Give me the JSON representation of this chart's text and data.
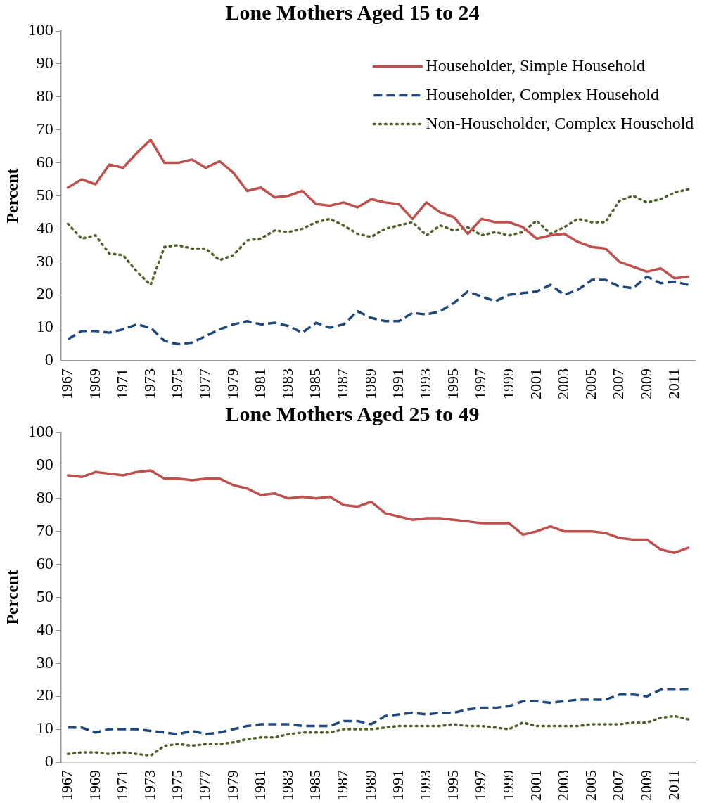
{
  "chart_data": [
    {
      "type": "line",
      "title": "Lone Mothers Aged 15 to 24",
      "ylabel": "Percent",
      "categories": [
        "1967",
        null,
        "1969",
        null,
        "1971",
        null,
        "1973",
        null,
        "1975",
        null,
        "1977",
        null,
        "1979",
        null,
        "1981",
        null,
        "1983",
        null,
        "1985",
        null,
        "1987",
        null,
        "1989",
        null,
        "1991",
        null,
        "1993",
        null,
        "1995",
        null,
        "1997",
        null,
        "1999",
        null,
        "2001",
        null,
        "2003",
        null,
        "2005",
        null,
        "2007",
        null,
        "2009",
        null,
        "2011",
        null
      ],
      "ylim": [
        0,
        100
      ],
      "yticks": [
        0,
        10,
        20,
        30,
        40,
        50,
        60,
        70,
        80,
        90,
        100
      ],
      "grid": false,
      "legend": "top right",
      "marker": "none",
      "series": [
        {
          "name": "Householder, Simple Household",
          "color": "#c0504d",
          "line_style": "solid",
          "values": [
            52.5,
            55,
            53.5,
            59.5,
            58.5,
            63,
            67,
            60,
            60,
            61,
            58.5,
            60.5,
            57,
            51.5,
            52.5,
            49.5,
            50,
            51.5,
            47.5,
            47,
            48,
            46.5,
            49,
            48,
            47.5,
            43,
            48,
            45,
            43.5,
            38.5,
            43,
            42,
            42,
            40.5,
            37,
            38,
            38.5,
            36,
            34.5,
            34,
            30,
            28.5,
            27,
            28,
            25,
            25.5
          ]
        },
        {
          "name": "Householder, Complex Household",
          "color": "#1f497d",
          "line_style": "dashed",
          "values": [
            6.5,
            9,
            9,
            8.5,
            9.5,
            11,
            10,
            6,
            5,
            5.5,
            7.5,
            9.5,
            11,
            12,
            11,
            11.5,
            10.5,
            8.5,
            11.5,
            10,
            11,
            15,
            13,
            12,
            12,
            14.5,
            14,
            15,
            17.5,
            21,
            19.5,
            18,
            20,
            20.5,
            21,
            23,
            20,
            21.5,
            24.5,
            24.5,
            22.5,
            22,
            25.5,
            23.5,
            24,
            23
          ]
        },
        {
          "name": "Non-Householder, Complex Household",
          "color": "#4f6228",
          "line_style": "dotted",
          "values": [
            41.5,
            37,
            38,
            32.5,
            32,
            27,
            23,
            34.5,
            35,
            34,
            34,
            30.5,
            32,
            36.5,
            37,
            39.5,
            39,
            40,
            42,
            43,
            41,
            38.5,
            37.5,
            40,
            41,
            42,
            38,
            41,
            39.5,
            40.5,
            38,
            39,
            38,
            39,
            42.5,
            38.5,
            40.5,
            43,
            42,
            42,
            48.5,
            50,
            48,
            49,
            51,
            52
          ]
        }
      ]
    },
    {
      "type": "line",
      "title": "Lone Mothers Aged 25 to 49",
      "ylabel": "Percent",
      "categories": [
        "1967",
        null,
        "1969",
        null,
        "1971",
        null,
        "1973",
        null,
        "1975",
        null,
        "1977",
        null,
        "1979",
        null,
        "1981",
        null,
        "1983",
        null,
        "1985",
        null,
        "1987",
        null,
        "1989",
        null,
        "1991",
        null,
        "1993",
        null,
        "1995",
        null,
        "1997",
        null,
        "1999",
        null,
        "2001",
        null,
        "2003",
        null,
        "2005",
        null,
        "2007",
        null,
        "2009",
        null,
        "2011",
        null
      ],
      "ylim": [
        0,
        100
      ],
      "yticks": [
        0,
        10,
        20,
        30,
        40,
        50,
        60,
        70,
        80,
        90,
        100
      ],
      "grid": false,
      "legend": false,
      "marker": "none",
      "series": [
        {
          "color": "#c0504d",
          "line_style": "solid",
          "values": [
            87,
            86.5,
            88,
            87.5,
            87,
            88,
            88.5,
            86,
            86,
            85.5,
            86,
            86,
            84,
            83,
            81,
            81.5,
            80,
            80.5,
            80,
            80.5,
            78,
            77.5,
            79,
            75.5,
            74.5,
            73.5,
            74,
            74,
            73.5,
            73,
            72.5,
            72.5,
            72.5,
            69,
            70,
            71.5,
            70,
            70,
            70,
            69.5,
            68,
            67.5,
            67.5,
            64.5,
            63.5,
            65
          ]
        },
        {
          "color": "#1f497d",
          "line_style": "dashed",
          "values": [
            10.5,
            10.5,
            9,
            10,
            10,
            10,
            9.5,
            9,
            8.5,
            9.5,
            8.5,
            9,
            10,
            11,
            11.5,
            11.5,
            11.5,
            11,
            11,
            11,
            12.5,
            12.5,
            11.5,
            14,
            14.5,
            15,
            14.5,
            15,
            15,
            16,
            16.5,
            16.5,
            17,
            18.5,
            18.5,
            18,
            18.5,
            19,
            19,
            19,
            20.5,
            20.5,
            20,
            22,
            22,
            22
          ]
        },
        {
          "color": "#4f6228",
          "line_style": "dotted",
          "values": [
            2.5,
            3,
            3,
            2.5,
            3,
            2.5,
            2,
            5,
            5.5,
            5,
            5.5,
            5.5,
            6,
            7,
            7.5,
            7.5,
            8.5,
            9,
            9,
            9,
            10,
            10,
            10,
            10.5,
            11,
            11,
            11,
            11,
            11.5,
            11,
            11,
            10.5,
            10,
            12,
            11,
            11,
            11,
            11,
            11.5,
            11.5,
            11.5,
            12,
            12,
            13.5,
            14,
            13
          ]
        }
      ]
    }
  ]
}
